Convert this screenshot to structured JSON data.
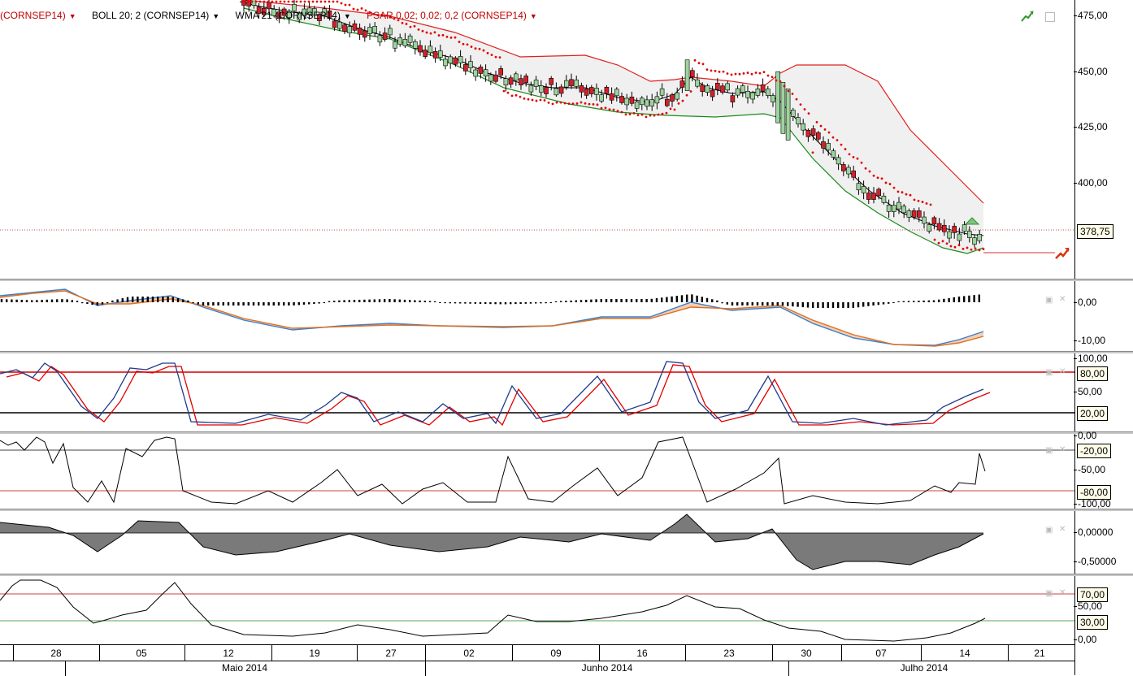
{
  "legend": {
    "items": [
      {
        "label": "(CORNSEP14)",
        "color": "#c00000"
      },
      {
        "label": "BOLL 20; 2 (CORNSEP14)",
        "color": "#000000"
      },
      {
        "label": "WMA 21 (CORNSEP14)",
        "color": "#000000"
      },
      {
        "label": "PSAR 0,02; 0,02; 0,2 (CORNSEP14)",
        "color": "#c00000"
      }
    ]
  },
  "price_axis": {
    "ticks": [
      "475,00",
      "450,00",
      "425,00",
      "400,00"
    ],
    "last_price": "378,75"
  },
  "macd_axis": {
    "ticks": [
      "0,00",
      "-10,00"
    ]
  },
  "stoch_axis": {
    "ticks": [
      "100,00",
      "50,00"
    ],
    "badges": [
      "80,00",
      "20,00"
    ]
  },
  "williams_axis": {
    "ticks": [
      "0,00",
      "-50,00",
      "-100,00"
    ],
    "badges": [
      "-20,00",
      "-80,00"
    ]
  },
  "osc_axis": {
    "ticks": [
      "0,00000",
      "-0,50000"
    ]
  },
  "rsi_axis": {
    "ticks": [
      "50,00",
      "0,00"
    ],
    "badges": [
      "70,00",
      "30,00"
    ]
  },
  "dates": [
    "28",
    "05",
    "12",
    "19",
    "27",
    "02",
    "09",
    "16",
    "23",
    "30",
    "07",
    "14",
    "21"
  ],
  "months": [
    "Maio 2014",
    "Junho 2014",
    "Julho 2014"
  ],
  "colors": {
    "up": "#9ed39e",
    "down": "#d4202a",
    "upper_band": "#e02020",
    "lower_band": "#1a8a1a",
    "psar": "#e00000"
  }
}
